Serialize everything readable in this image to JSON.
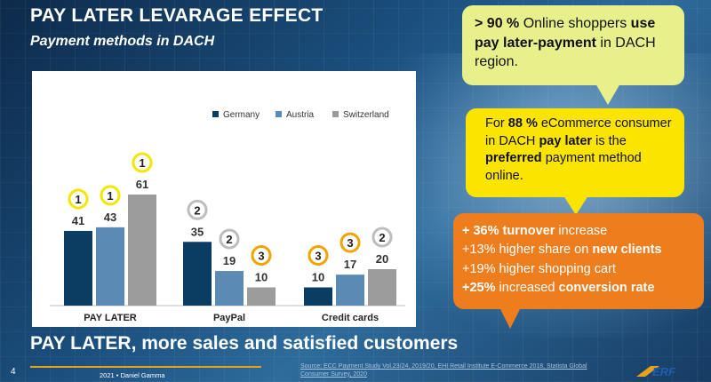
{
  "slide": {
    "title": "PAY LATER LEVARAGE EFFECT",
    "subtitle": "Payment methods in DACH",
    "banner": "PAY LATER, more sales and satisfied customers",
    "page_number": "4",
    "author": "2021 • Daniel Gamma",
    "source": "Source: ECC Payment Study Vol.23/24, 2019/20, EHI Retail Institute E-Commerce 2018, Statista Global Consumer Survey, 2020",
    "logo_text": "ERF"
  },
  "bubbles": {
    "b1": {
      "p1": "> 90 %",
      "p2": " Online shoppers ",
      "p3": "use pay later-payment",
      "p4": " in DACH region."
    },
    "b2": {
      "p1": "For ",
      "p2": "88 %",
      "p3": " eCommerce consumer in DACH ",
      "p4": "pay later",
      "p5": " is the ",
      "p6": "preferred",
      "p7": " payment method online."
    },
    "b3": {
      "l1a": "+ 36% turnover",
      "l1b": " increase",
      "l2a": "+13%  higher share on ",
      "l2b": "new clients",
      "l3": "+19%  higher shopping cart",
      "l4a": "+25%",
      "l4b": "  increased ",
      "l4c": "conversion rate"
    }
  },
  "colors": {
    "germany": "#0b3d63",
    "austria": "#5b8bb5",
    "switzerland": "#9c9c9c",
    "rank_yellow": "#f4e600",
    "rank_orange": "#f0a400",
    "rank_gray": "#bdbdbd"
  },
  "chart_data": {
    "type": "bar",
    "categories": [
      "PAY LATER",
      "PayPal",
      "Credit cards"
    ],
    "series": [
      {
        "name": "Germany",
        "values": [
          41,
          35,
          10
        ],
        "ranks": [
          1,
          2,
          3
        ]
      },
      {
        "name": "Austria",
        "values": [
          43,
          19,
          17
        ],
        "ranks": [
          1,
          2,
          3
        ]
      },
      {
        "name": "Switzerland",
        "values": [
          61,
          10,
          20
        ],
        "ranks": [
          1,
          3,
          2
        ]
      }
    ],
    "legend_position": "top-right",
    "grid": false,
    "ylim": [
      0,
      70
    ]
  }
}
